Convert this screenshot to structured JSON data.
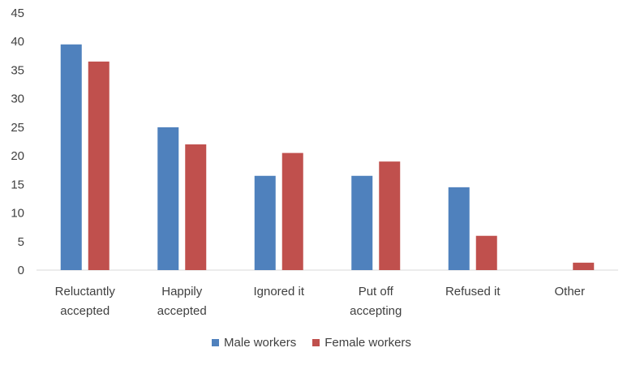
{
  "chart_data": {
    "type": "bar",
    "title": "",
    "xlabel": "",
    "ylabel": "",
    "ylim": [
      0,
      45
    ],
    "yticks": [
      0,
      5,
      10,
      15,
      20,
      25,
      30,
      35,
      40,
      45
    ],
    "grid": false,
    "legend_position": "bottom",
    "categories": [
      [
        "Reluctantly",
        "accepted"
      ],
      [
        "Happily",
        "accepted"
      ],
      [
        "Ignored it"
      ],
      [
        "Put off",
        "accepting"
      ],
      [
        "Refused it"
      ],
      [
        "Other"
      ]
    ],
    "series": [
      {
        "name": "Male workers",
        "color": "#4f81bd",
        "values": [
          39.5,
          25,
          16.5,
          16.5,
          14.5,
          0
        ]
      },
      {
        "name": "Female workers",
        "color": "#c0504d",
        "values": [
          36.5,
          22,
          20.5,
          19,
          6,
          1.3
        ]
      }
    ]
  }
}
